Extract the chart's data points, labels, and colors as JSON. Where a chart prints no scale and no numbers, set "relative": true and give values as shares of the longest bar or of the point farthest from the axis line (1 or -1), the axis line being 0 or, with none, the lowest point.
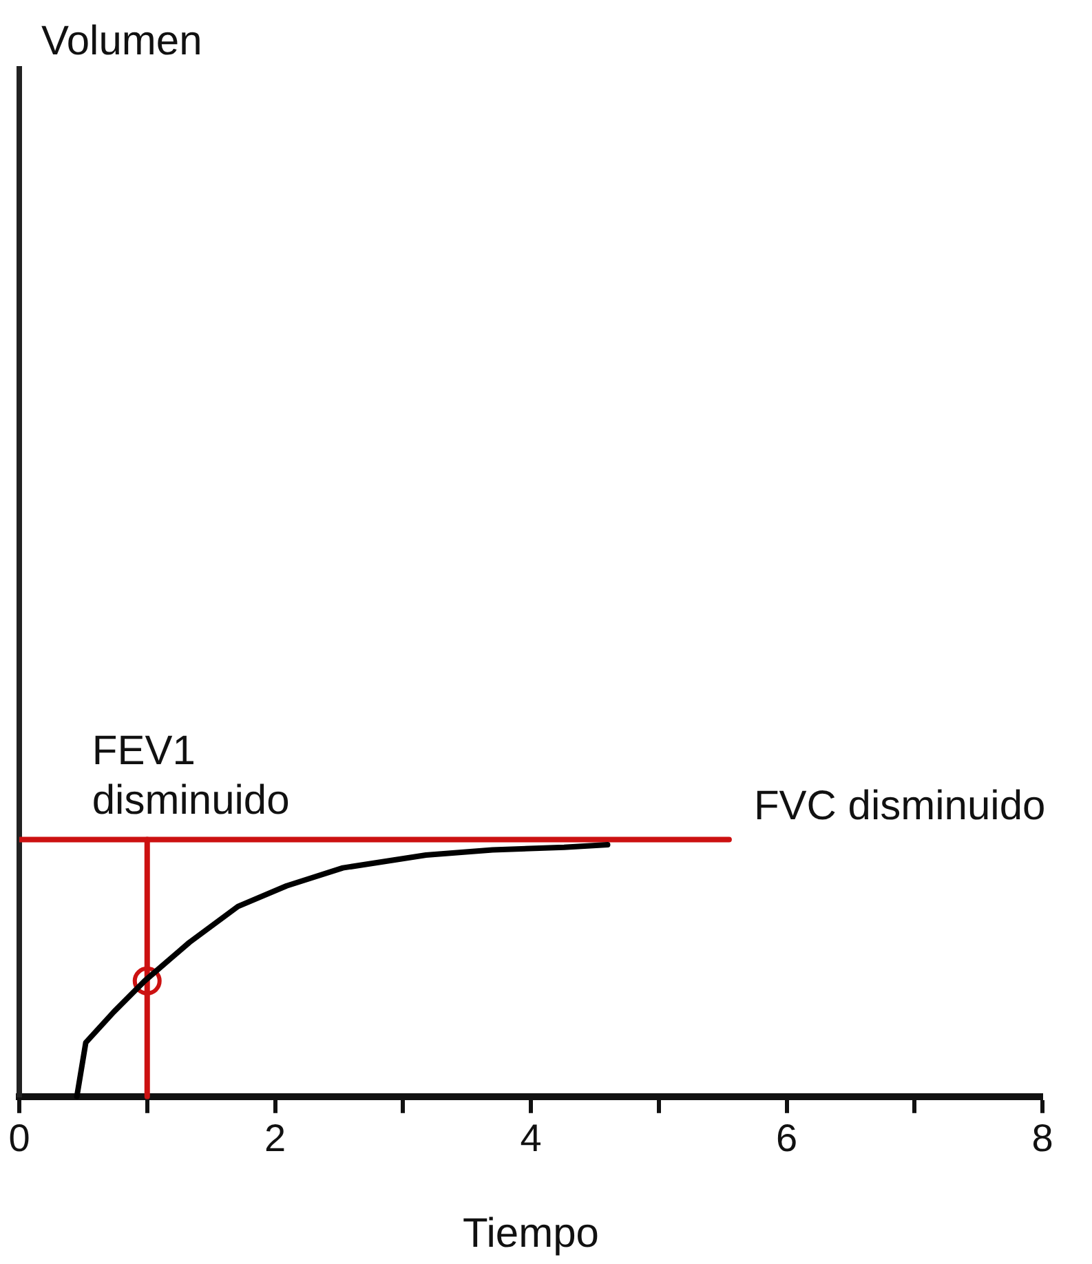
{
  "chart_data": {
    "type": "line",
    "relative": true,
    "annotations": [
      "Volumen"
    ],
    "xlabel": "Tiempo",
    "xlim": [
      0,
      8
    ],
    "xticks": [
      0,
      {
        "value": 1,
        "label": null
      },
      2,
      {
        "value": 3,
        "label": null
      },
      4,
      {
        "value": 5,
        "label": null
      },
      6,
      {
        "value": 7,
        "label": null
      },
      8
    ],
    "grid": false,
    "legend": false,
    "marker": "none",
    "series": [
      {
        "color": "#000000",
        "x": [
          0.45,
          0.52,
          0.74,
          0.98,
          1.33,
          1.71,
          2.09,
          2.53,
          3.18,
          3.7,
          4.26,
          4.6
        ],
        "values": [
          0,
          0.21,
          0.33,
          0.45,
          0.6,
          0.74,
          0.82,
          0.89,
          0.94,
          0.96,
          0.97,
          0.98
        ]
      },
      {
        "name": "FVC disminuido",
        "color": "#cc1111",
        "x": [
          0,
          5.55
        ],
        "values": [
          1,
          1
        ]
      },
      {
        "name": "FEV1 disminuido",
        "color": "#cc1111",
        "x": [
          1,
          1
        ],
        "values": [
          0,
          1
        ]
      },
      {
        "type": "scatter",
        "marker": "circle",
        "color": "#cc1111",
        "x": [
          1
        ],
        "values": [
          0.45
        ]
      }
    ]
  }
}
